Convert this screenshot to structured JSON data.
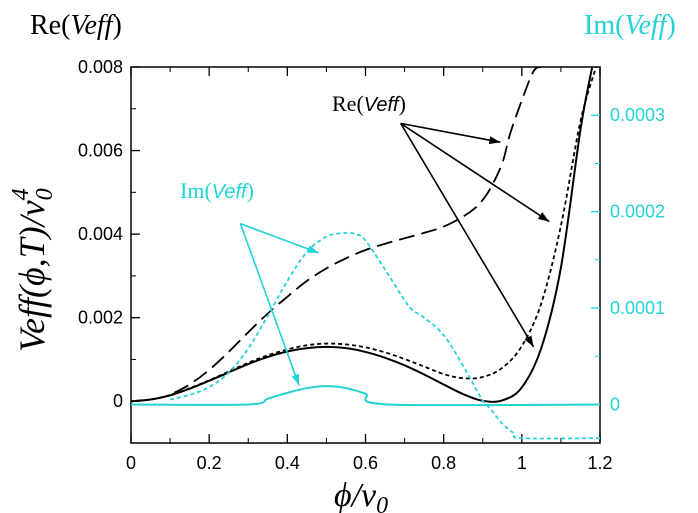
{
  "colors": {
    "real": "#000000",
    "imag": "#22d3d3"
  },
  "chart_data": {
    "type": "line",
    "corner_label_left": {
      "prefix": "Re(",
      "ital": "Veff",
      "suffix": ")"
    },
    "corner_label_right": {
      "prefix": "Im(",
      "ital": "Veff",
      "suffix": ")"
    },
    "xlabel": "ϕ/v0",
    "xlabel_parts": {
      "phi": "ϕ",
      "slash": "/v",
      "sub": "0"
    },
    "ylabel": "Veff(ϕ,T)/v0^4",
    "ylabel_parts": {
      "main": "Veff(ϕ,T)/v",
      "sub": "0",
      "sup": "4"
    },
    "xlim": [
      0,
      1.2
    ],
    "ylim_left": [
      -0.001,
      0.008
    ],
    "ylim_right": [
      -4e-05,
      0.00035
    ],
    "x_ticks": [
      "0",
      "0.2",
      "0.4",
      "0.6",
      "0.8",
      "1",
      "1.2"
    ],
    "y_ticks_left": [
      "0",
      "0.002",
      "0.004",
      "0.006",
      "0.008"
    ],
    "y_ticks_right": [
      "0",
      "0.0001",
      "0.0002",
      "0.0003"
    ],
    "annotations": [
      {
        "prefix": "Re(",
        "ital": "Veff",
        "suffix": ")"
      },
      {
        "prefix": "Im(",
        "ital": "Veff",
        "suffix": ")"
      }
    ],
    "series": [
      {
        "axis": "left",
        "style": "solid",
        "color": "real",
        "x": [
          0,
          0.05,
          0.1,
          0.15,
          0.2,
          0.25,
          0.3,
          0.35,
          0.4,
          0.45,
          0.5,
          0.55,
          0.6,
          0.65,
          0.7,
          0.75,
          0.8,
          0.85,
          0.9,
          0.95,
          1.0,
          1.05,
          1.1,
          1.15,
          1.18
        ],
        "y": [
          0,
          4e-05,
          0.00014,
          0.0003,
          0.00049,
          0.00069,
          0.00089,
          0.00106,
          0.00119,
          0.00127,
          0.0013,
          0.00127,
          0.00118,
          0.00104,
          0.00086,
          0.00064,
          0.0004,
          0.00017,
          1e-05,
          2e-05,
          0.00033,
          0.00128,
          0.0032,
          0.0065,
          0.008
        ]
      },
      {
        "axis": "left",
        "style": "dashed-short",
        "color": "real",
        "x": [
          0,
          0.05,
          0.1,
          0.15,
          0.2,
          0.25,
          0.3,
          0.35,
          0.4,
          0.45,
          0.5,
          0.55,
          0.6,
          0.65,
          0.7,
          0.75,
          0.8,
          0.85,
          0.9,
          0.95,
          1.0,
          1.05,
          1.1,
          1.15,
          1.19
        ],
        "y": [
          0,
          4e-05,
          0.00015,
          0.00031,
          0.0005,
          0.00071,
          0.00092,
          0.0011,
          0.00124,
          0.00134,
          0.00138,
          0.00136,
          0.00129,
          0.00117,
          0.00101,
          0.00083,
          0.00065,
          0.00055,
          0.00058,
          0.0008,
          0.00132,
          0.00235,
          0.0042,
          0.0067,
          0.008
        ]
      },
      {
        "axis": "left",
        "style": "dashed-long",
        "color": "real",
        "x": [
          0.11,
          0.15,
          0.2,
          0.25,
          0.3,
          0.35,
          0.4,
          0.45,
          0.5,
          0.55,
          0.6,
          0.65,
          0.7,
          0.75,
          0.8,
          0.85,
          0.88,
          0.9,
          0.92,
          0.95,
          0.97,
          1.0,
          1.03,
          1.05
        ],
        "y": [
          0.0002,
          0.0004,
          0.00075,
          0.00118,
          0.00165,
          0.0021,
          0.0025,
          0.00288,
          0.00318,
          0.00342,
          0.00362,
          0.00377,
          0.0039,
          0.00403,
          0.00418,
          0.00442,
          0.00462,
          0.00482,
          0.0051,
          0.0057,
          0.0064,
          0.0072,
          0.0079,
          0.008
        ]
      },
      {
        "axis": "right",
        "style": "dashed-short",
        "color": "imag",
        "x": [
          0.1,
          0.15,
          0.2,
          0.25,
          0.3,
          0.35,
          0.4,
          0.45,
          0.5,
          0.55,
          0.58,
          0.6,
          0.65,
          0.7,
          0.72,
          0.75,
          0.8,
          0.85,
          0.88,
          0.9,
          0.92,
          0.95,
          0.98,
          1.0,
          1.2
        ],
        "y": [
          5e-06,
          1e-05,
          1.8e-05,
          3.3e-05,
          5.8e-05,
          9.2e-05,
          0.000128,
          0.000158,
          0.000174,
          0.000178,
          0.000176,
          0.00017,
          0.00014,
          0.000108,
          9.8e-05,
          9e-05,
          7.2e-05,
          4e-05,
          1.8e-05,
          4e-06,
          -5e-06,
          -2e-05,
          -3e-05,
          -3.5e-05,
          -3.5e-05
        ]
      },
      {
        "axis": "right",
        "style": "solid",
        "color": "imag",
        "x": [
          0,
          0.3,
          0.35,
          0.4,
          0.45,
          0.5,
          0.55,
          0.6,
          0.66,
          1.2
        ],
        "y": [
          0,
          0,
          6e-06,
          1.2e-05,
          1.7e-05,
          1.9e-05,
          1.7e-05,
          1.1e-05,
          0,
          0
        ]
      }
    ],
    "arrows": [
      {
        "color": "real",
        "from": [
          0.69,
          0.00665
        ],
        "to": [
          0.945,
          0.0062
        ]
      },
      {
        "color": "real",
        "from": [
          0.69,
          0.00665
        ],
        "to": [
          1.07,
          0.0043
        ]
      },
      {
        "color": "real",
        "from": [
          0.69,
          0.00665
        ],
        "to": [
          1.03,
          0.0013
        ]
      },
      {
        "color": "imag",
        "from": [
          0.28,
          0.00425
        ],
        "to": [
          0.48,
          0.00355
        ]
      },
      {
        "color": "imag",
        "from": [
          0.28,
          0.00425
        ],
        "to": [
          0.43,
          0.00038
        ]
      }
    ]
  }
}
